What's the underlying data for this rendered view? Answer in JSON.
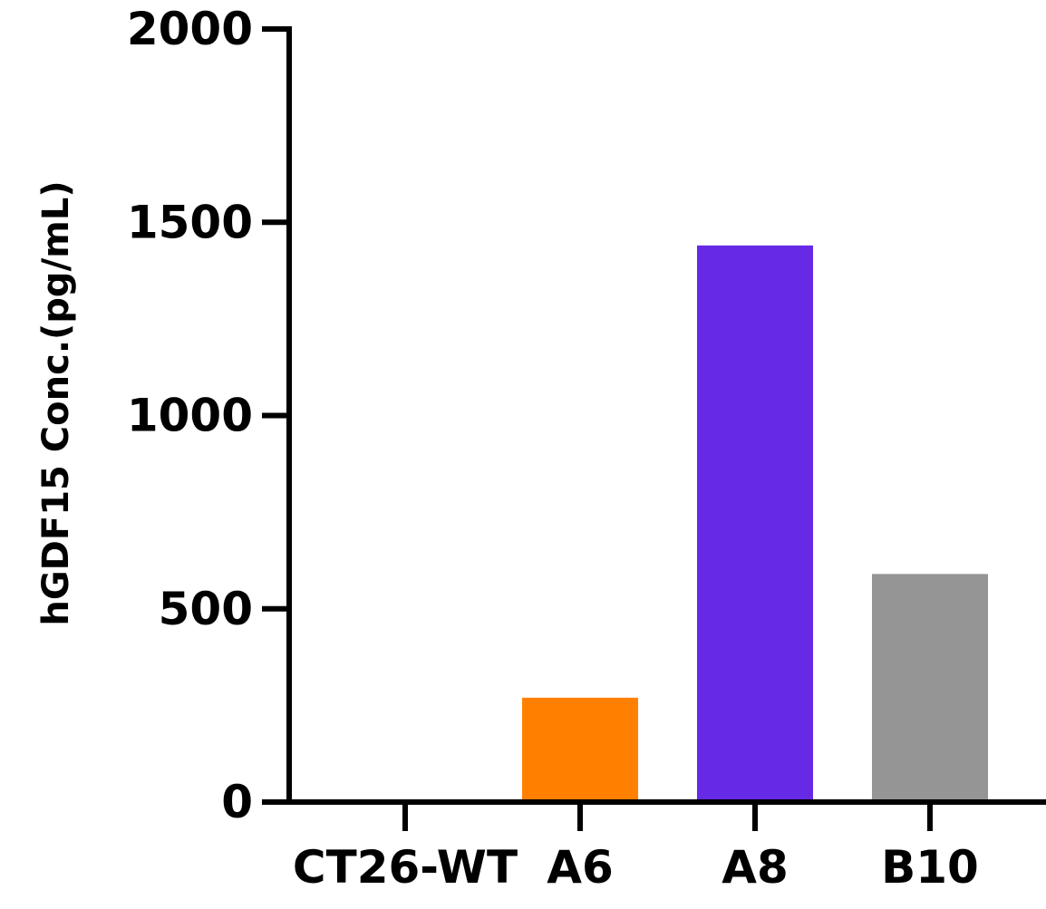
{
  "chart_data": {
    "type": "bar",
    "title": "",
    "xlabel": "",
    "ylabel": "hGDF15 Conc.(pg/mL)",
    "categories": [
      "CT26-WT",
      "A6",
      "A8",
      "B10"
    ],
    "values": [
      0,
      270,
      1440,
      590
    ],
    "colors": [
      "#ffffff",
      "#FF8000",
      "#6629E6",
      "#959595"
    ],
    "ylim": [
      0,
      2000
    ],
    "yticks": [
      0,
      500,
      1000,
      1500,
      2000
    ],
    "ytick_labels": [
      "0",
      "500",
      "1000",
      "1500",
      "2000"
    ],
    "grid": false,
    "legend": "none"
  }
}
